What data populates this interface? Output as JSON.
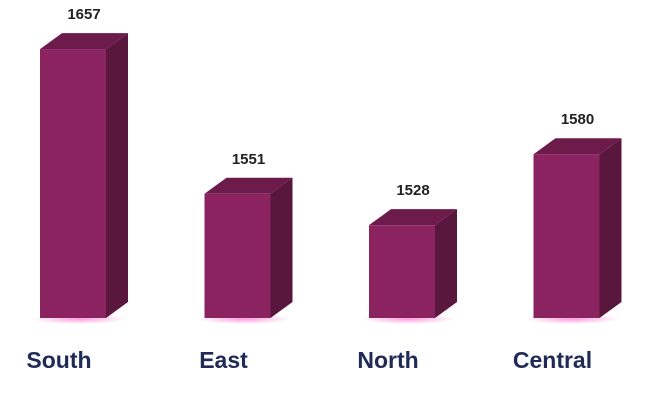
{
  "chart_data": {
    "type": "bar3d",
    "categories": [
      "South",
      "East",
      "North",
      "Central"
    ],
    "values": [
      1657,
      1551,
      1528,
      1580
    ],
    "color": "#8b2360",
    "ylim": [
      1460,
      1660
    ]
  }
}
